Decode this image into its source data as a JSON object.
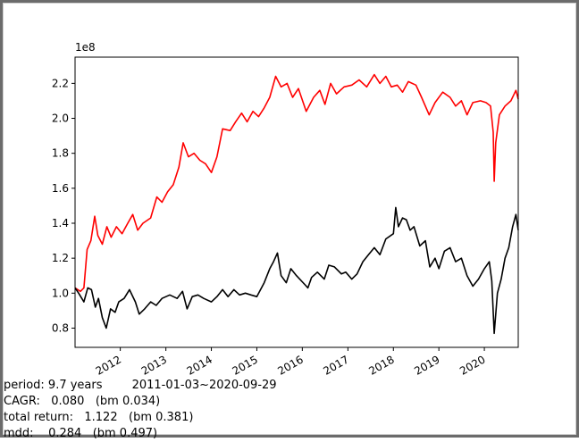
{
  "stats": {
    "period": "period: 9.7 years        2011-01-03~2020-09-29",
    "cagr": "CAGR:   0.080   (bm 0.034)",
    "total_return": "total return:   1.122   (bm 0.381)",
    "mdd": "mdd:    0.284   (bm 0.497)"
  },
  "chart_data": {
    "type": "line",
    "title": "",
    "xlabel": "",
    "ylabel": "",
    "y_offset_label": "1e8",
    "xlim": [
      "2011-01-03",
      "2020-09-29"
    ],
    "ylim": [
      0.69,
      2.35
    ],
    "y_ticks": [
      0.8,
      1.0,
      1.2,
      1.4,
      1.6,
      1.8,
      2.0,
      2.2
    ],
    "y_tick_labels": [
      "0.8",
      "1.0",
      "1.2",
      "1.4",
      "1.6",
      "1.8",
      "2.0",
      "2.2"
    ],
    "x_ticks": [
      "2012-01-01",
      "2013-01-01",
      "2014-01-01",
      "2015-01-01",
      "2016-01-01",
      "2017-01-01",
      "2018-01-01",
      "2019-01-01",
      "2020-01-01"
    ],
    "x_tick_labels": [
      "2012",
      "2013",
      "2014",
      "2015",
      "2016",
      "2017",
      "2018",
      "2019",
      "2020"
    ],
    "grid": false,
    "legend": "none",
    "series": [
      {
        "color": "#ff0000",
        "points": [
          [
            "2011-01-03",
            1.03
          ],
          [
            "2011-02-15",
            1.01
          ],
          [
            "2011-03-15",
            1.03
          ],
          [
            "2011-04-10",
            1.25
          ],
          [
            "2011-05-10",
            1.3
          ],
          [
            "2011-06-10",
            1.44
          ],
          [
            "2011-07-05",
            1.33
          ],
          [
            "2011-08-10",
            1.28
          ],
          [
            "2011-09-15",
            1.38
          ],
          [
            "2011-10-20",
            1.32
          ],
          [
            "2011-12-01",
            1.38
          ],
          [
            "2012-01-15",
            1.34
          ],
          [
            "2012-03-01",
            1.4
          ],
          [
            "2012-04-10",
            1.45
          ],
          [
            "2012-05-20",
            1.36
          ],
          [
            "2012-07-01",
            1.4
          ],
          [
            "2012-09-01",
            1.43
          ],
          [
            "2012-10-20",
            1.55
          ],
          [
            "2012-12-01",
            1.52
          ],
          [
            "2013-01-15",
            1.58
          ],
          [
            "2013-03-01",
            1.62
          ],
          [
            "2013-04-15",
            1.72
          ],
          [
            "2013-05-20",
            1.86
          ],
          [
            "2013-07-01",
            1.78
          ],
          [
            "2013-08-15",
            1.8
          ],
          [
            "2013-10-01",
            1.76
          ],
          [
            "2013-11-15",
            1.74
          ],
          [
            "2014-01-01",
            1.69
          ],
          [
            "2014-02-15",
            1.78
          ],
          [
            "2014-04-01",
            1.94
          ],
          [
            "2014-06-01",
            1.93
          ],
          [
            "2014-07-15",
            1.98
          ],
          [
            "2014-09-01",
            2.03
          ],
          [
            "2014-10-15",
            1.98
          ],
          [
            "2014-12-01",
            2.04
          ],
          [
            "2015-01-15",
            2.01
          ],
          [
            "2015-03-01",
            2.06
          ],
          [
            "2015-04-15",
            2.12
          ],
          [
            "2015-06-01",
            2.24
          ],
          [
            "2015-07-15",
            2.18
          ],
          [
            "2015-09-01",
            2.2
          ],
          [
            "2015-10-15",
            2.12
          ],
          [
            "2015-12-01",
            2.17
          ],
          [
            "2016-02-01",
            2.04
          ],
          [
            "2016-04-01",
            2.12
          ],
          [
            "2016-05-20",
            2.16
          ],
          [
            "2016-07-01",
            2.08
          ],
          [
            "2016-08-15",
            2.2
          ],
          [
            "2016-10-01",
            2.14
          ],
          [
            "2016-12-01",
            2.18
          ],
          [
            "2017-02-01",
            2.19
          ],
          [
            "2017-04-01",
            2.22
          ],
          [
            "2017-06-01",
            2.18
          ],
          [
            "2017-08-01",
            2.25
          ],
          [
            "2017-09-15",
            2.2
          ],
          [
            "2017-11-01",
            2.24
          ],
          [
            "2017-12-15",
            2.18
          ],
          [
            "2018-02-01",
            2.19
          ],
          [
            "2018-03-15",
            2.15
          ],
          [
            "2018-05-01",
            2.21
          ],
          [
            "2018-07-01",
            2.19
          ],
          [
            "2018-08-15",
            2.12
          ],
          [
            "2018-10-15",
            2.02
          ],
          [
            "2018-12-01",
            2.09
          ],
          [
            "2019-02-01",
            2.15
          ],
          [
            "2019-04-01",
            2.12
          ],
          [
            "2019-05-15",
            2.07
          ],
          [
            "2019-07-01",
            2.1
          ],
          [
            "2019-08-15",
            2.02
          ],
          [
            "2019-10-01",
            2.09
          ],
          [
            "2019-12-01",
            2.1
          ],
          [
            "2020-01-15",
            2.09
          ],
          [
            "2020-02-20",
            2.07
          ],
          [
            "2020-03-12",
            1.92
          ],
          [
            "2020-03-20",
            1.64
          ],
          [
            "2020-04-01",
            1.86
          ],
          [
            "2020-05-01",
            2.02
          ],
          [
            "2020-06-15",
            2.07
          ],
          [
            "2020-08-01",
            2.1
          ],
          [
            "2020-09-10",
            2.16
          ],
          [
            "2020-09-29",
            2.11
          ]
        ]
      },
      {
        "color": "#000000",
        "points": [
          [
            "2011-01-03",
            1.03
          ],
          [
            "2011-02-01",
            1.0
          ],
          [
            "2011-03-15",
            0.95
          ],
          [
            "2011-04-15",
            1.03
          ],
          [
            "2011-05-15",
            1.02
          ],
          [
            "2011-06-15",
            0.92
          ],
          [
            "2011-07-10",
            0.97
          ],
          [
            "2011-08-10",
            0.86
          ],
          [
            "2011-09-10",
            0.8
          ],
          [
            "2011-10-15",
            0.91
          ],
          [
            "2011-11-20",
            0.89
          ],
          [
            "2011-12-20",
            0.95
          ],
          [
            "2012-02-01",
            0.97
          ],
          [
            "2012-03-15",
            1.02
          ],
          [
            "2012-05-01",
            0.95
          ],
          [
            "2012-06-01",
            0.88
          ],
          [
            "2012-07-15",
            0.91
          ],
          [
            "2012-09-01",
            0.95
          ],
          [
            "2012-10-15",
            0.93
          ],
          [
            "2012-12-01",
            0.97
          ],
          [
            "2013-02-01",
            0.99
          ],
          [
            "2013-04-01",
            0.97
          ],
          [
            "2013-05-15",
            1.01
          ],
          [
            "2013-06-20",
            0.91
          ],
          [
            "2013-08-01",
            0.98
          ],
          [
            "2013-09-15",
            0.99
          ],
          [
            "2013-11-01",
            0.97
          ],
          [
            "2014-01-01",
            0.95
          ],
          [
            "2014-02-15",
            0.98
          ],
          [
            "2014-04-01",
            1.02
          ],
          [
            "2014-05-15",
            0.98
          ],
          [
            "2014-07-01",
            1.02
          ],
          [
            "2014-08-15",
            0.99
          ],
          [
            "2014-10-01",
            1.0
          ],
          [
            "2014-11-15",
            0.99
          ],
          [
            "2015-01-01",
            0.98
          ],
          [
            "2015-03-01",
            1.06
          ],
          [
            "2015-04-15",
            1.14
          ],
          [
            "2015-05-15",
            1.18
          ],
          [
            "2015-06-15",
            1.23
          ],
          [
            "2015-07-15",
            1.1
          ],
          [
            "2015-08-25",
            1.06
          ],
          [
            "2015-10-01",
            1.14
          ],
          [
            "2015-11-15",
            1.1
          ],
          [
            "2016-01-20",
            1.05
          ],
          [
            "2016-02-15",
            1.03
          ],
          [
            "2016-03-15",
            1.09
          ],
          [
            "2016-05-01",
            1.12
          ],
          [
            "2016-06-25",
            1.08
          ],
          [
            "2016-08-01",
            1.16
          ],
          [
            "2016-09-15",
            1.15
          ],
          [
            "2016-11-10",
            1.11
          ],
          [
            "2016-12-15",
            1.12
          ],
          [
            "2017-02-01",
            1.08
          ],
          [
            "2017-03-15",
            1.11
          ],
          [
            "2017-05-01",
            1.18
          ],
          [
            "2017-06-15",
            1.22
          ],
          [
            "2017-08-01",
            1.26
          ],
          [
            "2017-09-15",
            1.22
          ],
          [
            "2017-11-01",
            1.31
          ],
          [
            "2018-01-01",
            1.34
          ],
          [
            "2018-01-20",
            1.49
          ],
          [
            "2018-02-10",
            1.38
          ],
          [
            "2018-03-15",
            1.43
          ],
          [
            "2018-04-15",
            1.42
          ],
          [
            "2018-05-15",
            1.36
          ],
          [
            "2018-06-15",
            1.38
          ],
          [
            "2018-08-01",
            1.27
          ],
          [
            "2018-09-15",
            1.3
          ],
          [
            "2018-10-20",
            1.15
          ],
          [
            "2018-12-01",
            1.2
          ],
          [
            "2019-01-01",
            1.14
          ],
          [
            "2019-02-15",
            1.24
          ],
          [
            "2019-04-01",
            1.26
          ],
          [
            "2019-05-15",
            1.18
          ],
          [
            "2019-07-01",
            1.2
          ],
          [
            "2019-08-15",
            1.1
          ],
          [
            "2019-10-01",
            1.04
          ],
          [
            "2019-11-15",
            1.08
          ],
          [
            "2020-01-01",
            1.14
          ],
          [
            "2020-02-10",
            1.18
          ],
          [
            "2020-03-01",
            1.07
          ],
          [
            "2020-03-20",
            0.77
          ],
          [
            "2020-04-15",
            1.0
          ],
          [
            "2020-05-15",
            1.08
          ],
          [
            "2020-06-15",
            1.2
          ],
          [
            "2020-07-15",
            1.26
          ],
          [
            "2020-08-15",
            1.38
          ],
          [
            "2020-09-10",
            1.45
          ],
          [
            "2020-09-29",
            1.36
          ]
        ]
      }
    ]
  }
}
